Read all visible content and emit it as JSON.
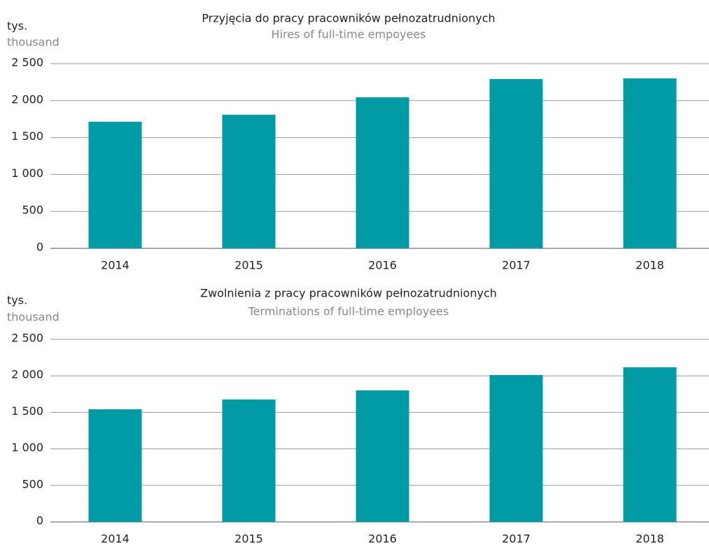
{
  "chart_data": [
    {
      "type": "bar",
      "title": "Przyjęcia do pracy pracowników pełnozatrudnionych",
      "subtitle": "Hires of full-time empoyees",
      "y_label": "tys.",
      "y_label_en": "thousand",
      "categories": [
        "2014",
        "2015",
        "2016",
        "2017",
        "2018"
      ],
      "values": [
        1714,
        1809,
        2045,
        2292,
        2301
      ],
      "color": "#009ba4",
      "ylim": [
        0,
        2500
      ],
      "yticks": [
        0,
        500,
        {
          "value": 1000,
          "label": "1 000"
        },
        {
          "value": 1500,
          "label": "1 500"
        },
        {
          "value": 2000,
          "label": "2 000"
        },
        {
          "value": 2500,
          "label": "2 500"
        }
      ],
      "grid": true
    },
    {
      "type": "bar",
      "title": "Zwolnienia z pracy pracowników pełnozatrudnionych",
      "subtitle": "Terminations of full-time employees",
      "y_label": "tys.",
      "y_label_en": "thousand",
      "categories": [
        "2014",
        "2015",
        "2016",
        "2017",
        "2018"
      ],
      "values": [
        1542,
        1676,
        1801,
        2011,
        2117
      ],
      "color": "#009ba4",
      "ylim": [
        0,
        2500
      ],
      "yticks": [
        0,
        500,
        {
          "value": 1000,
          "label": "1 000"
        },
        {
          "value": 1500,
          "label": "1 500"
        },
        {
          "value": 2000,
          "label": "2 000"
        },
        {
          "value": 2500,
          "label": "2 500"
        }
      ],
      "grid": true
    }
  ]
}
